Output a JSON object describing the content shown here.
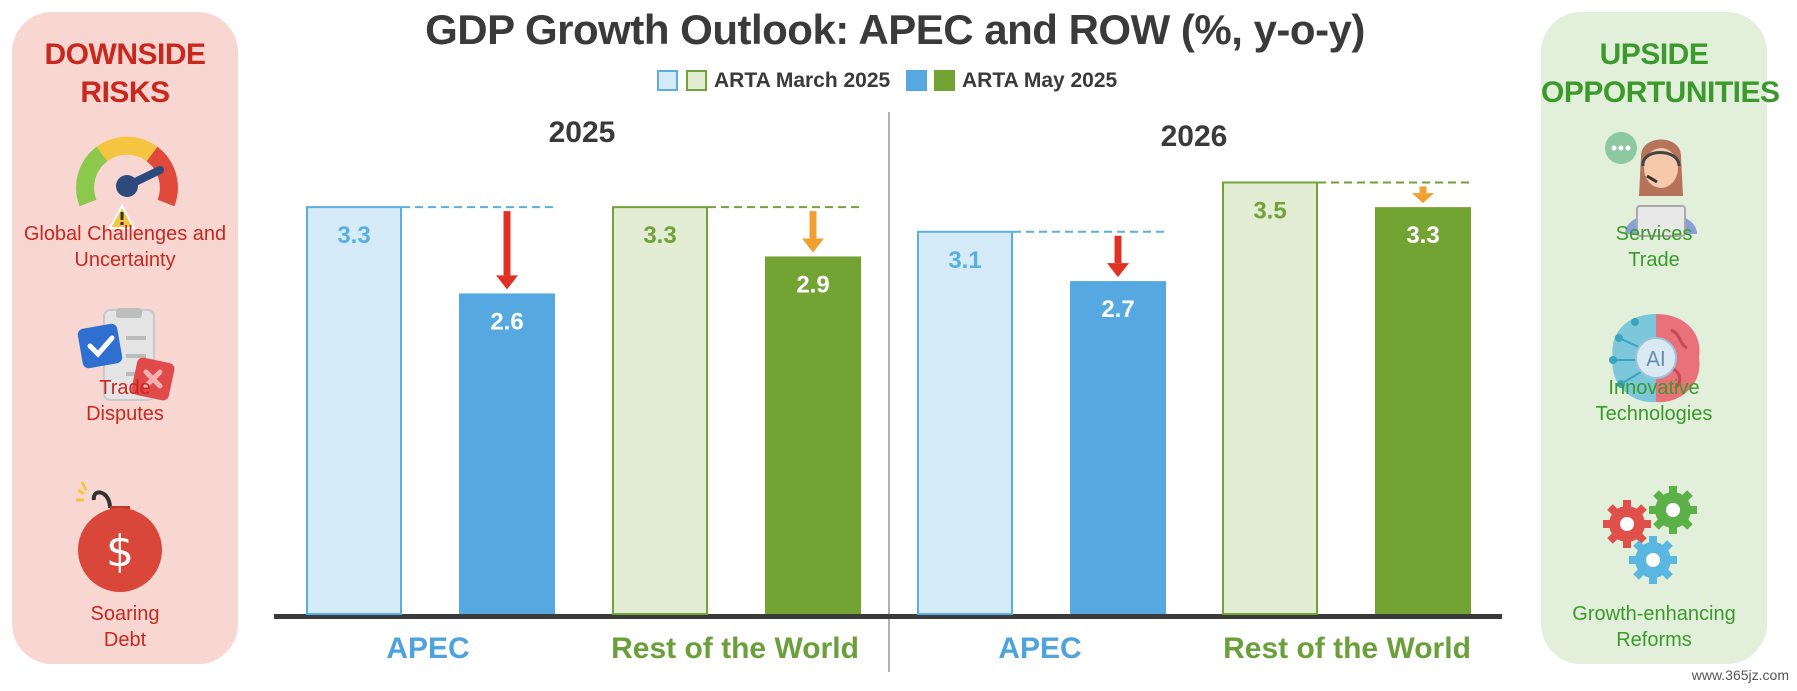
{
  "title": "GDP Growth Outlook: APEC and ROW (%, y-o-y)",
  "legend": {
    "march": "ARTA March 2025",
    "may": "ARTA May 2025"
  },
  "left_panel": {
    "title_line1": "DOWNSIDE",
    "title_line2": "RISKS",
    "items": [
      {
        "line1": "Global Challenges and",
        "line2": "Uncertainty",
        "icon": "gauge-icon"
      },
      {
        "line1": "Trade",
        "line2": "Disputes",
        "icon": "checklist-icon"
      },
      {
        "line1": "Soaring",
        "line2": "Debt",
        "icon": "dollar-bomb-icon"
      }
    ]
  },
  "right_panel": {
    "title_line1": "UPSIDE",
    "title_line2": "OPPORTUNITIES",
    "items": [
      {
        "line1": "Services",
        "line2": "Trade",
        "icon": "call-agent-icon"
      },
      {
        "line1": "Innovative",
        "line2": "Technologies",
        "icon": "ai-brain-icon"
      },
      {
        "line1": "Growth-enhancing",
        "line2": "Reforms",
        "icon": "gears-icon"
      }
    ]
  },
  "colors": {
    "apec_march_fill": "#d6ebf8",
    "apec_march_stroke": "#5aaee0",
    "apec_may": "#55a8e0",
    "row_march_fill": "#e2edd3",
    "row_march_stroke": "#72a33a",
    "row_may": "#72a333",
    "arrow_red": "#e03224",
    "arrow_orange": "#f0a030",
    "apec_label": "#4fa3dc",
    "row_label": "#6aa03a"
  },
  "chart_data": {
    "type": "bar",
    "ylim": [
      0,
      4.25
    ],
    "years": [
      {
        "year": "2025",
        "groups": [
          {
            "name": "APEC",
            "march": 3.3,
            "may": 2.6,
            "arrow": "red"
          },
          {
            "name": "Rest of the World",
            "march": 3.3,
            "may": 2.9,
            "arrow": "orange"
          }
        ]
      },
      {
        "year": "2026",
        "groups": [
          {
            "name": "APEC",
            "march": 3.1,
            "may": 2.7,
            "arrow": "red"
          },
          {
            "name": "Rest of the World",
            "march": 3.5,
            "may": 3.3,
            "arrow": "orange"
          }
        ]
      }
    ]
  },
  "watermark": "www.365jz.com"
}
